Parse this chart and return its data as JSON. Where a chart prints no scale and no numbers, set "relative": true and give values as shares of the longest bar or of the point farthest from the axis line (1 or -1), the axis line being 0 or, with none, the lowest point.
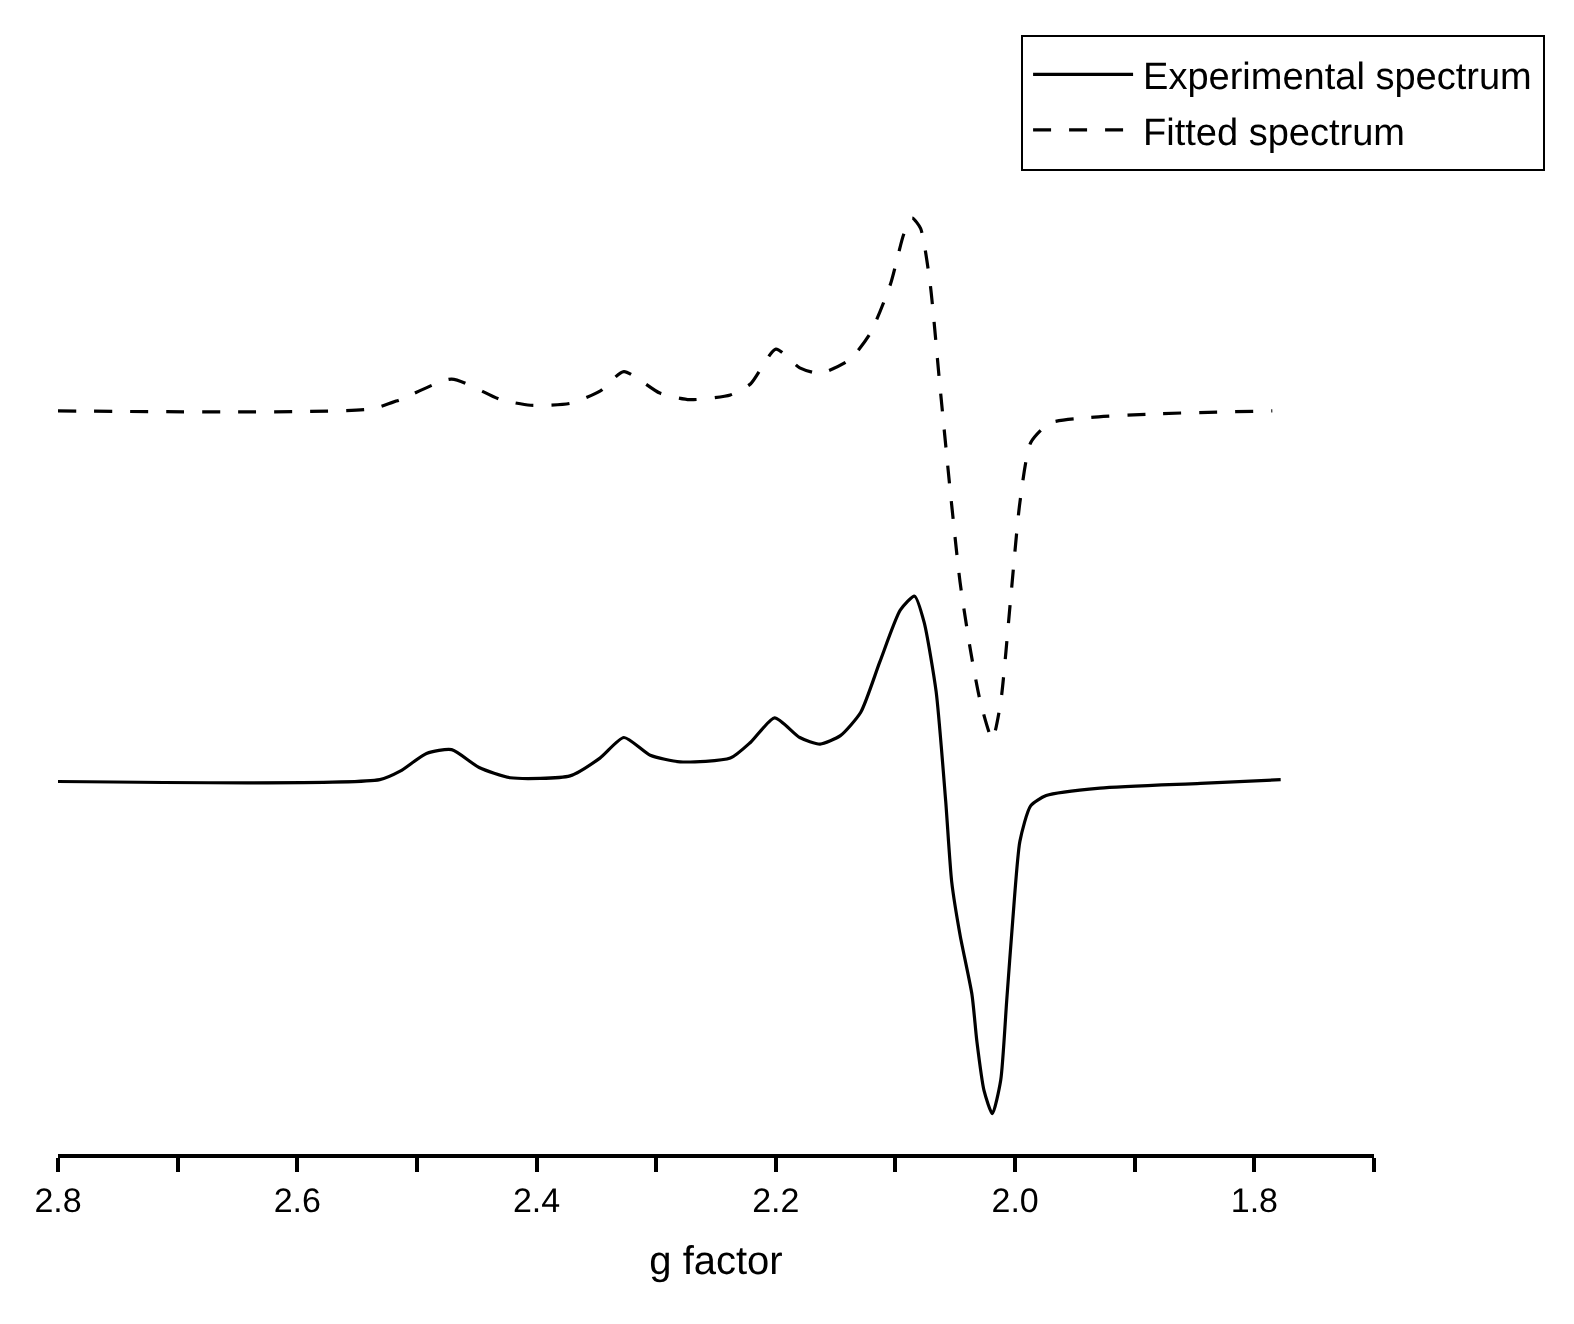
{
  "chart_data": {
    "type": "line",
    "xlabel": "g factor",
    "relative": true,
    "xlim": [
      2.8,
      1.7
    ],
    "xticks": [
      2.8,
      {
        "value": 2.7,
        "label": null
      },
      2.6,
      {
        "value": 2.5,
        "label": null
      },
      2.4,
      {
        "value": 2.3,
        "label": null
      },
      2.2,
      {
        "value": 2.1,
        "label": null
      },
      {
        "value": 2.0,
        "label": "2.0"
      },
      {
        "value": 1.9,
        "label": null
      },
      1.8,
      {
        "value": 1.7,
        "label": null
      }
    ],
    "tick_labels": "x",
    "grid": false,
    "legend": "top right",
    "marker": "none",
    "series": [
      {
        "name": "Experimental spectrum",
        "color": "#000000",
        "line_style": "solid",
        "x": [
          2.8,
          2.531,
          2.514,
          2.492,
          2.471,
          2.448,
          2.422,
          2.372,
          2.347,
          2.327,
          2.305,
          2.28,
          2.238,
          2.221,
          2.201,
          2.18,
          2.163,
          2.146,
          2.129,
          2.113,
          2.096,
          2.084,
          2.076,
          2.066,
          2.058,
          2.053,
          2.046,
          2.036,
          2.032,
          2.026,
          2.019,
          2.012,
          2.007,
          2.002,
          1.996,
          1.987,
          1.974,
          1.929,
          1.845,
          1.778
        ],
        "values": [
          0.398,
          0.4,
          0.409,
          0.428,
          0.432,
          0.413,
          0.402,
          0.404,
          0.423,
          0.445,
          0.426,
          0.419,
          0.423,
          0.44,
          0.466,
          0.445,
          0.438,
          0.447,
          0.472,
          0.526,
          0.581,
          0.596,
          0.568,
          0.494,
          0.377,
          0.291,
          0.234,
          0.17,
          0.121,
          0.068,
          0.043,
          0.079,
          0.164,
          0.249,
          0.334,
          0.372,
          0.383,
          0.391,
          0.396,
          0.4
        ]
      },
      {
        "name": "Fitted spectrum",
        "color": "#000000",
        "line_style": "dashed",
        "x": [
          2.8,
          2.539,
          2.514,
          2.471,
          2.43,
          2.405,
          2.372,
          2.347,
          2.327,
          2.297,
          2.272,
          2.238,
          2.221,
          2.2,
          2.18,
          2.163,
          2.138,
          2.121,
          2.104,
          2.093,
          2.086,
          2.079,
          2.071,
          2.063,
          2.054,
          2.046,
          2.037,
          2.029,
          2.019,
          2.012,
          2.004,
          1.996,
          1.987,
          1.971,
          1.937,
          1.879,
          1.785
        ],
        "values": [
          0.794,
          0.796,
          0.806,
          0.828,
          0.806,
          0.8,
          0.802,
          0.815,
          0.836,
          0.813,
          0.806,
          0.811,
          0.823,
          0.86,
          0.84,
          0.834,
          0.849,
          0.877,
          0.93,
          0.983,
          1.0,
          0.989,
          0.93,
          0.823,
          0.706,
          0.611,
          0.536,
          0.483,
          0.443,
          0.483,
          0.589,
          0.696,
          0.76,
          0.781,
          0.787,
          0.791,
          0.794
        ]
      }
    ]
  }
}
